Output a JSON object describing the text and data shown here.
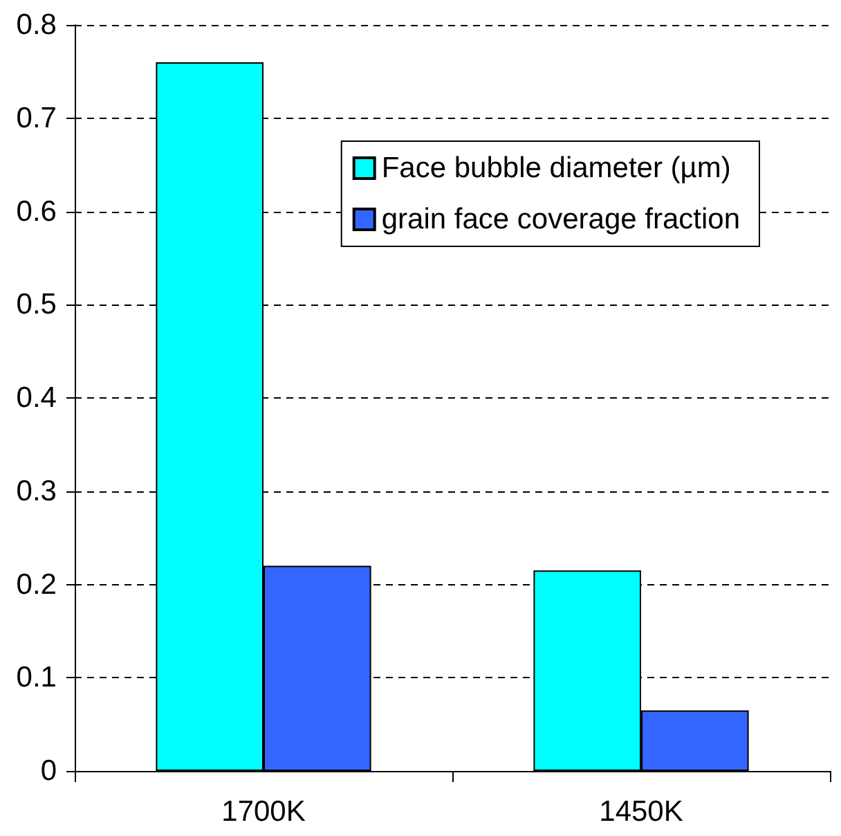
{
  "chart_data": {
    "type": "bar",
    "categories": [
      "1700K",
      "1450K"
    ],
    "series": [
      {
        "name": "Face bubble diameter (µm)",
        "color": "#00ffff",
        "values": [
          0.76,
          0.215
        ]
      },
      {
        "name": "grain face coverage fraction",
        "color": "#3366ff",
        "values": [
          0.22,
          0.065
        ]
      }
    ],
    "ylim": [
      0,
      0.8
    ],
    "yticks": [
      0,
      0.1,
      0.2,
      0.3,
      0.4,
      0.5,
      0.6,
      0.7,
      0.8
    ],
    "grid": "y",
    "legend": "top right"
  }
}
